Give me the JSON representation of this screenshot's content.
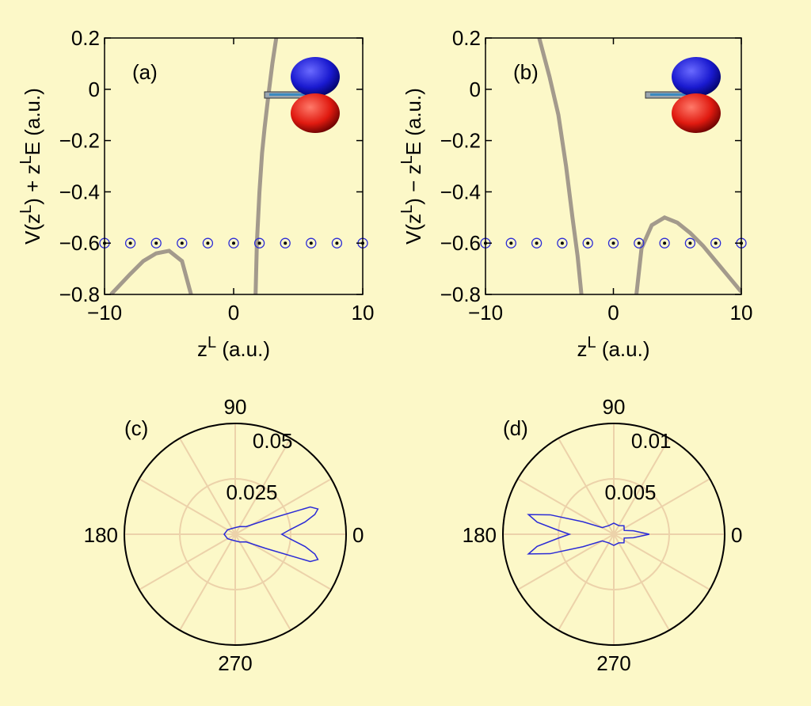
{
  "chart_data": [
    {
      "type": "line",
      "label": "(a)",
      "x_label": [
        "z",
        "L",
        " (a.u.)"
      ],
      "y_label": [
        "V(z",
        "L",
        ") + z",
        "L",
        "E (a.u.)"
      ],
      "xlim": [
        -10,
        10
      ],
      "ylim": [
        -0.8,
        0.2
      ],
      "xticks": [
        {
          "value": -10,
          "label": "−10"
        },
        0,
        10
      ],
      "yticks": [
        {
          "value": -0.8,
          "label": "−0.8"
        },
        {
          "value": -0.6,
          "label": "−0.6"
        },
        {
          "value": -0.4,
          "label": "−0.4"
        },
        {
          "value": -0.2,
          "label": "−0.2"
        },
        0,
        0.2
      ],
      "series": [
        {
          "color": "#a39a8c",
          "x": [
            -9.5,
            -8,
            -7,
            -6,
            -5,
            -4,
            -3.3
          ],
          "values": [
            -0.8,
            -0.72,
            -0.67,
            -0.64,
            -0.63,
            -0.67,
            -0.8
          ]
        },
        {
          "color": "#a39a8c",
          "x": [
            1.7,
            1.8,
            2.0,
            2.2,
            2.4,
            2.7,
            3.0,
            3.3
          ],
          "values": [
            -0.8,
            -0.6,
            -0.4,
            -0.25,
            -0.15,
            -0.02,
            0.1,
            0.2
          ]
        },
        {
          "color": "#2b2bd6",
          "marker": "o",
          "x": [
            -10,
            -8,
            -6,
            -4,
            -2,
            0,
            2,
            4,
            6,
            8,
            10
          ],
          "values": [
            -0.6,
            -0.6,
            -0.6,
            -0.6,
            -0.6,
            -0.6,
            -0.6,
            -0.6,
            -0.6,
            -0.6,
            -0.6
          ]
        }
      ]
    },
    {
      "type": "line",
      "label": "(b)",
      "x_label": [
        "z",
        "L",
        " (a.u.)"
      ],
      "y_label": [
        "V(z",
        "L",
        ") − z",
        "L",
        "E (a.u.)"
      ],
      "xlim": [
        -10,
        10
      ],
      "ylim": [
        -0.8,
        0.2
      ],
      "xticks": [
        {
          "value": -10,
          "label": "−10"
        },
        0,
        10
      ],
      "yticks": [
        {
          "value": -0.8,
          "label": "−0.8"
        },
        {
          "value": -0.6,
          "label": "−0.6"
        },
        {
          "value": -0.4,
          "label": "−0.4"
        },
        {
          "value": -0.2,
          "label": "−0.2"
        },
        0,
        0.2
      ],
      "series": [
        {
          "color": "#a39a8c",
          "x": [
            -5.8,
            -5,
            -4.3,
            -3.7,
            -3.2,
            -2.8,
            -2.5
          ],
          "values": [
            0.2,
            0.05,
            -0.1,
            -0.3,
            -0.5,
            -0.65,
            -0.8
          ]
        },
        {
          "color": "#a39a8c",
          "x": [
            1.8,
            2.2,
            3,
            4,
            5,
            6,
            7,
            8,
            9,
            10
          ],
          "values": [
            -0.8,
            -0.62,
            -0.53,
            -0.5,
            -0.52,
            -0.56,
            -0.61,
            -0.67,
            -0.73,
            -0.79
          ]
        },
        {
          "color": "#2b2bd6",
          "marker": "o",
          "x": [
            -10,
            -8,
            -6,
            -4,
            -2,
            0,
            2,
            4,
            6,
            8,
            10
          ],
          "values": [
            -0.6,
            -0.6,
            -0.6,
            -0.6,
            -0.6,
            -0.6,
            -0.6,
            -0.6,
            -0.6,
            -0.6,
            -0.6
          ]
        }
      ]
    },
    {
      "type": "polar",
      "label": "(c)",
      "rlim": [
        0,
        0.05
      ],
      "rticks": [
        0.025,
        0.05
      ],
      "thetaticks": [
        0,
        90,
        180,
        270
      ],
      "series": [
        {
          "color": "#2b2bd6",
          "theta": [
            0,
            5,
            10,
            14,
            17,
            20,
            25,
            35,
            60,
            90,
            120,
            150,
            180,
            210,
            240,
            270,
            300,
            325,
            335,
            340,
            343,
            346,
            350,
            355
          ],
          "values": [
            0.021,
            0.025,
            0.032,
            0.037,
            0.039,
            0.036,
            0.015,
            0.006,
            0.004,
            0.003,
            0.003,
            0.004,
            0.005,
            0.004,
            0.003,
            0.003,
            0.004,
            0.006,
            0.015,
            0.036,
            0.039,
            0.037,
            0.032,
            0.025
          ]
        }
      ]
    },
    {
      "type": "polar",
      "label": "(d)",
      "rlim": [
        0,
        0.01
      ],
      "rticks": [
        0.005,
        0.01
      ],
      "thetaticks": [
        0,
        90,
        180,
        270
      ],
      "series": [
        {
          "color": "#2b2bd6",
          "theta": [
            0,
            10,
            20,
            40,
            60,
            90,
            120,
            150,
            158,
            163,
            167,
            171,
            176,
            180,
            184,
            189,
            193,
            197,
            202,
            210,
            240,
            270,
            300,
            320,
            340,
            350
          ],
          "values": [
            0.0032,
            0.0018,
            0.001,
            0.0012,
            0.0009,
            0.001,
            0.0009,
            0.0012,
            0.003,
            0.006,
            0.0079,
            0.007,
            0.005,
            0.004,
            0.005,
            0.007,
            0.0079,
            0.006,
            0.003,
            0.0012,
            0.0009,
            0.001,
            0.0009,
            0.0012,
            0.001,
            0.0018
          ]
        }
      ]
    }
  ]
}
